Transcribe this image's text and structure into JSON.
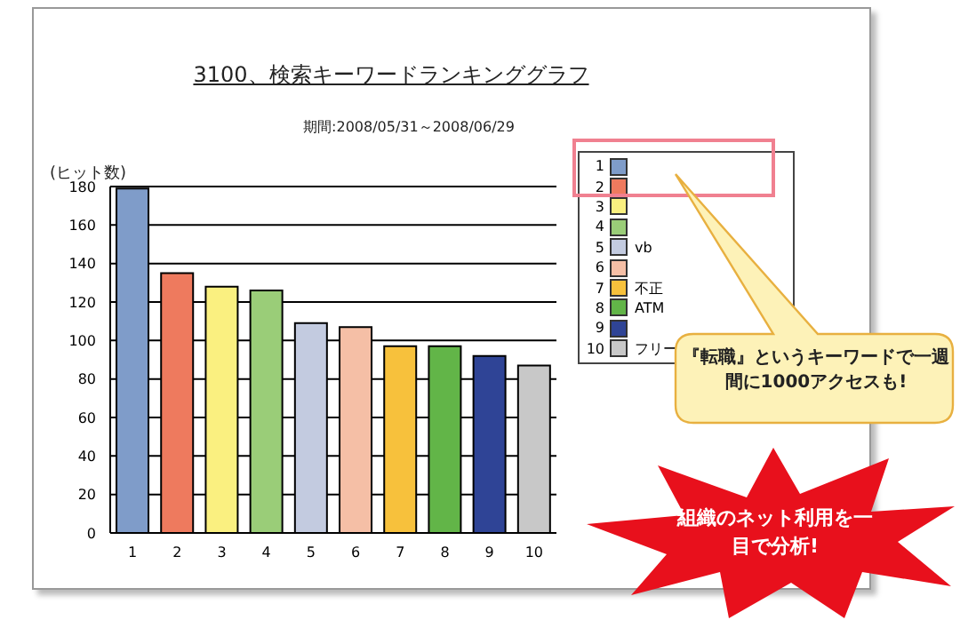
{
  "chart_data": {
    "type": "bar",
    "title": "3100、検索キーワードランキンググラフ",
    "subtitle": "期間:2008/05/31～2008/06/29",
    "ylabel": "(ヒット数)",
    "categories": [
      "1",
      "2",
      "3",
      "4",
      "5",
      "6",
      "7",
      "8",
      "9",
      "10"
    ],
    "stacked": true,
    "series": [
      {
        "color": "#7f9cc9",
        "values": [
          179,
          null,
          null,
          null,
          null,
          null,
          null,
          null,
          null,
          null
        ]
      },
      {
        "color": "#ee7a5e",
        "values": [
          null,
          135,
          null,
          null,
          null,
          null,
          null,
          null,
          null,
          null
        ]
      },
      {
        "color": "#faf080",
        "values": [
          null,
          null,
          128,
          null,
          null,
          null,
          null,
          null,
          null,
          null
        ]
      },
      {
        "color": "#9acd78",
        "values": [
          null,
          null,
          null,
          126,
          null,
          null,
          null,
          null,
          null,
          null
        ]
      },
      {
        "name": "vb",
        "color": "#c3cbe0",
        "values": [
          null,
          null,
          null,
          null,
          109,
          null,
          null,
          null,
          null,
          null
        ]
      },
      {
        "color": "#f5bfa6",
        "values": [
          null,
          null,
          null,
          null,
          null,
          107,
          null,
          null,
          null,
          null
        ]
      },
      {
        "name": "不正",
        "color": "#f7c13c",
        "values": [
          null,
          null,
          null,
          null,
          null,
          null,
          97,
          null,
          null,
          null
        ]
      },
      {
        "name": "ATM",
        "color": "#62b548",
        "values": [
          null,
          null,
          null,
          null,
          null,
          null,
          null,
          97,
          null,
          null
        ]
      },
      {
        "color": "#2f4496",
        "values": [
          null,
          null,
          null,
          null,
          null,
          null,
          null,
          null,
          92,
          null
        ]
      },
      {
        "name": "フリー",
        "color": "#c8c8c8",
        "values": [
          null,
          null,
          null,
          null,
          null,
          null,
          null,
          null,
          null,
          87
        ]
      }
    ],
    "ylim": [
      0,
      180
    ],
    "yticks": [
      0,
      20,
      40,
      60,
      80,
      100,
      120,
      140,
      160,
      180
    ],
    "grid": "y",
    "legend": "top right",
    "annotations": [
      "『転職』というキーワードで一週間に1000アクセスも!",
      "組織のネット利用を一目で分析!"
    ]
  }
}
